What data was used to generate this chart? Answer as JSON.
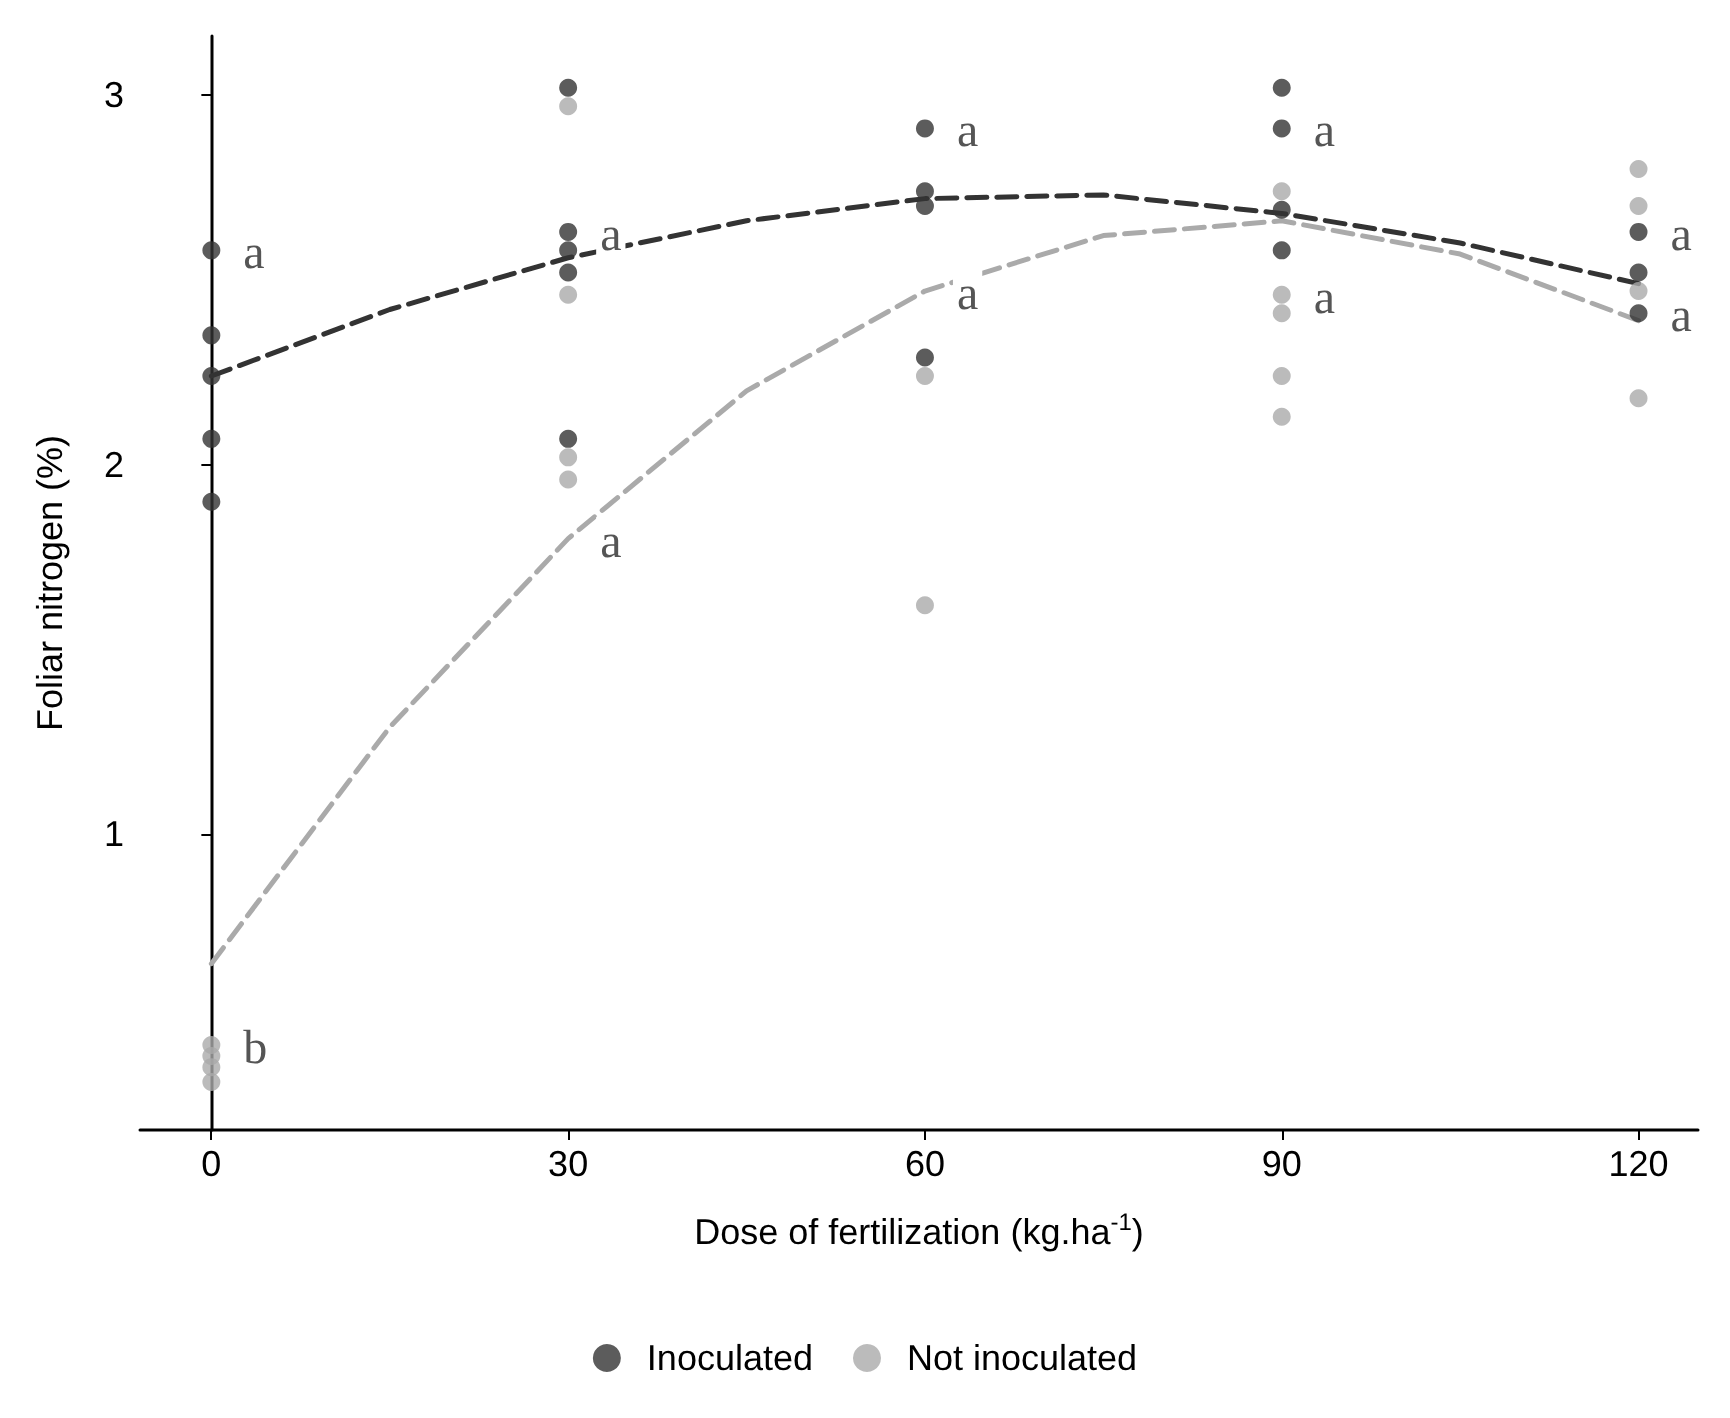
{
  "chart_data": {
    "type": "scatter",
    "xlabel": "Dose of fertilization (kg.ha$^{-1}$)",
    "ylabel": "Foliar nitrogen (%)",
    "xlim": [
      -6,
      125
    ],
    "ylim": [
      0.2,
      3.16
    ],
    "xticks": [
      0,
      30,
      60,
      90,
      120
    ],
    "yticks": [
      1,
      2,
      3
    ],
    "grid": false,
    "legend": "bottom",
    "marker": "circle",
    "series": [
      {
        "name": "Inoculated",
        "type": "scatter",
        "color": "#333333",
        "x": [
          0,
          0,
          0,
          0,
          0,
          30,
          30,
          30,
          30,
          30,
          60,
          60,
          60,
          60,
          90,
          90,
          90,
          90,
          120,
          120,
          120
        ],
        "values": [
          2.58,
          2.35,
          2.24,
          2.07,
          1.9,
          3.02,
          2.63,
          2.58,
          2.52,
          2.07,
          2.91,
          2.74,
          2.7,
          2.29,
          3.02,
          2.91,
          2.69,
          2.58,
          2.63,
          2.52,
          2.41
        ]
      },
      {
        "name": "Not inoculated",
        "type": "scatter",
        "color": "#aaaaaa",
        "x": [
          0,
          0,
          0,
          0,
          30,
          30,
          30,
          30,
          60,
          60,
          90,
          90,
          90,
          90,
          90,
          120,
          120,
          120,
          120
        ],
        "values": [
          0.43,
          0.4,
          0.37,
          0.33,
          2.97,
          2.46,
          2.02,
          1.96,
          2.24,
          1.62,
          2.74,
          2.46,
          2.41,
          2.24,
          2.13,
          2.8,
          2.7,
          2.47,
          2.18
        ]
      },
      {
        "type": "line",
        "color": "#333333",
        "line_style": "dashed",
        "marker": "none",
        "x": [
          0,
          15,
          30,
          45,
          60,
          75,
          90,
          105,
          120
        ],
        "values": [
          2.24,
          2.42,
          2.56,
          2.66,
          2.72,
          2.73,
          2.68,
          2.6,
          2.49
        ]
      },
      {
        "type": "line",
        "color": "#aaaaaa",
        "line_style": "dashed",
        "marker": "none",
        "x": [
          0,
          15,
          30,
          45,
          60,
          75,
          90,
          105,
          120
        ],
        "values": [
          0.65,
          1.29,
          1.8,
          2.2,
          2.47,
          2.62,
          2.66,
          2.57,
          2.39
        ]
      }
    ],
    "annotations": [
      {
        "text": "a",
        "x": 0,
        "y": 2.58
      },
      {
        "text": "a",
        "x": 30,
        "y": 2.63
      },
      {
        "text": "a",
        "x": 30,
        "y": 1.8
      },
      {
        "text": "a",
        "x": 60,
        "y": 2.91
      },
      {
        "text": "a",
        "x": 60,
        "y": 2.47
      },
      {
        "text": "a",
        "x": 90,
        "y": 2.91
      },
      {
        "text": "a",
        "x": 90,
        "y": 2.46
      },
      {
        "text": "a",
        "x": 120,
        "y": 2.63
      },
      {
        "text": "a",
        "x": 120,
        "y": 2.41
      },
      {
        "text": "b",
        "x": 0,
        "y": 0.43
      }
    ]
  }
}
